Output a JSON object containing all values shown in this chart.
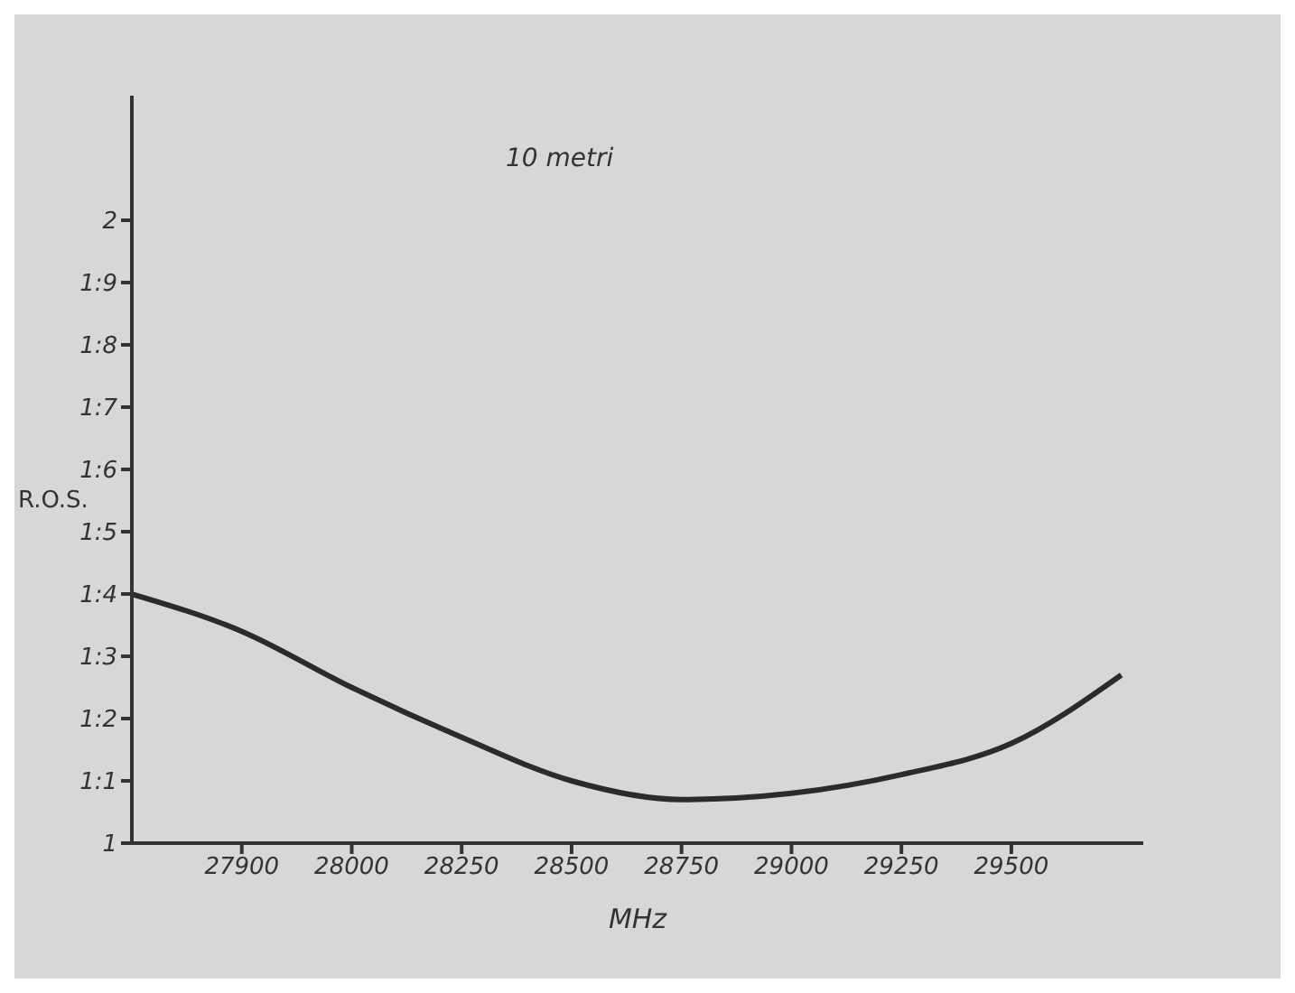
{
  "chart_data": {
    "type": "line",
    "title": "10 metri",
    "xlabel": "MHz",
    "ylabel": "R.O.S.",
    "categories": [
      null,
      "27900",
      "28000",
      "28250",
      "28500",
      "28750",
      "29000",
      "29250",
      "29500",
      null
    ],
    "series": [
      {
        "color": "#2b2b2b",
        "values": [
          1.4,
          1.34,
          1.25,
          1.17,
          1.1,
          1.07,
          1.08,
          1.11,
          1.16,
          1.27
        ]
      }
    ],
    "ylim": [
      1,
      2.2
    ],
    "yticks": [
      1,
      {
        "value": 1.1,
        "label": "1:1"
      },
      {
        "value": 1.2,
        "label": "1:2"
      },
      {
        "value": 1.3,
        "label": "1:3"
      },
      {
        "value": 1.4,
        "label": "1:4"
      },
      {
        "value": 1.5,
        "label": "1:5"
      },
      {
        "value": 1.6,
        "label": "1:6"
      },
      {
        "value": 1.7,
        "label": "1:7"
      },
      {
        "value": 1.8,
        "label": "1:8"
      },
      {
        "value": 1.9,
        "label": "1:9"
      },
      2
    ],
    "grid": false,
    "legend": false,
    "marker": "none",
    "line_style": "solid"
  }
}
